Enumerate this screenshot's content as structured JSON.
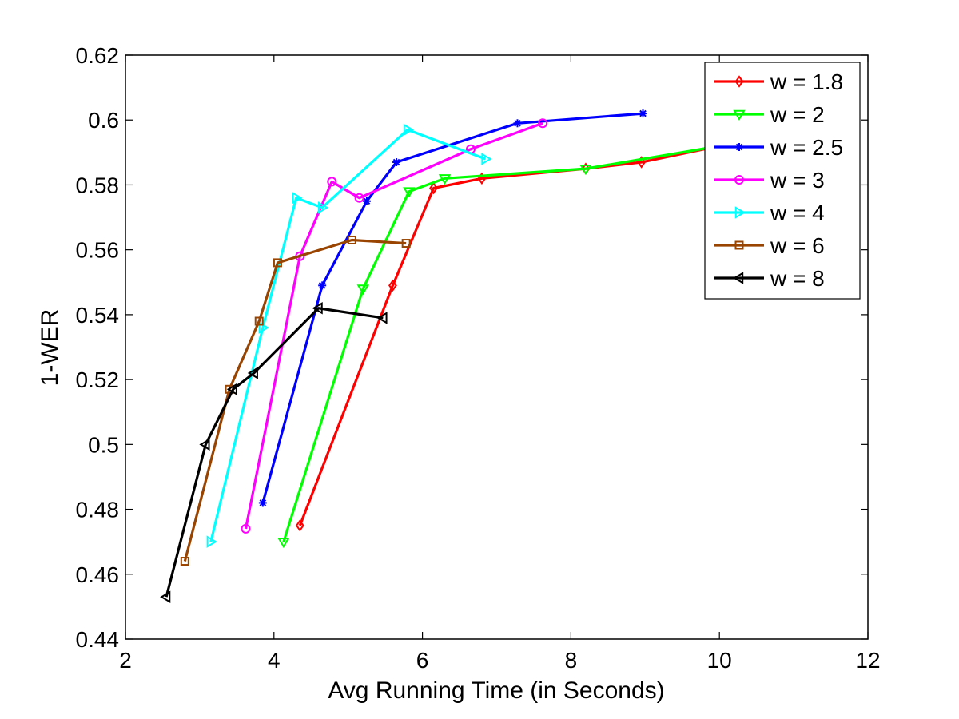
{
  "chart_data": {
    "type": "line",
    "title": "",
    "xlabel": "Avg Running Time (in Seconds)",
    "ylabel": "1-WER",
    "xlim": [
      2,
      12
    ],
    "ylim": [
      0.44,
      0.62
    ],
    "x_ticks": [
      2,
      4,
      6,
      8,
      10,
      12
    ],
    "x_tick_labels": [
      "2",
      "4",
      "6",
      "8",
      "10",
      "12"
    ],
    "y_ticks": [
      0.44,
      0.46,
      0.48,
      0.5,
      0.52,
      0.54,
      0.56,
      0.58,
      0.6,
      0.62
    ],
    "y_tick_labels": [
      "0.44",
      "0.46",
      "0.48",
      "0.5",
      "0.52",
      "0.54",
      "0.56",
      "0.58",
      "0.6",
      "0.62"
    ],
    "grid": false,
    "legend_position": "top-right",
    "series": [
      {
        "name": "w = 1.8",
        "color": "#ff0000",
        "marker": "diamond",
        "x": [
          4.35,
          5.6,
          6.15,
          6.8,
          8.2,
          8.95,
          10.0
        ],
        "y": [
          0.475,
          0.549,
          0.579,
          0.582,
          0.585,
          0.587,
          0.592
        ]
      },
      {
        "name": "w = 2",
        "color": "#00ff00",
        "marker": "triangle-down",
        "x": [
          4.13,
          5.2,
          5.82,
          6.3,
          8.2,
          10.0
        ],
        "y": [
          0.47,
          0.548,
          0.578,
          0.582,
          0.585,
          0.592
        ]
      },
      {
        "name": "w = 2.5",
        "color": "#0000ff",
        "marker": "asterisk",
        "x": [
          3.85,
          4.65,
          5.25,
          5.65,
          7.28,
          8.97
        ],
        "y": [
          0.482,
          0.549,
          0.575,
          0.587,
          0.599,
          0.602
        ]
      },
      {
        "name": "w = 3",
        "color": "#ff00ff",
        "marker": "circle",
        "x": [
          3.62,
          4.35,
          4.78,
          5.15,
          6.65,
          7.62
        ],
        "y": [
          0.474,
          0.558,
          0.581,
          0.576,
          0.591,
          0.599
        ]
      },
      {
        "name": "w = 4",
        "color": "#00ffff",
        "marker": "triangle-right",
        "x": [
          3.15,
          3.85,
          4.3,
          4.65,
          5.8,
          6.85
        ],
        "y": [
          0.47,
          0.536,
          0.576,
          0.573,
          0.597,
          0.588
        ]
      },
      {
        "name": "w = 6",
        "color": "#994400",
        "marker": "square",
        "x": [
          2.8,
          3.4,
          3.8,
          4.05,
          5.05,
          5.78
        ],
        "y": [
          0.464,
          0.517,
          0.538,
          0.556,
          0.563,
          0.562
        ]
      },
      {
        "name": "w = 8",
        "color": "#000000",
        "marker": "triangle-left",
        "x": [
          2.55,
          3.08,
          3.45,
          3.73,
          4.6,
          5.47
        ],
        "y": [
          0.453,
          0.5,
          0.517,
          0.522,
          0.542,
          0.539
        ]
      }
    ]
  }
}
